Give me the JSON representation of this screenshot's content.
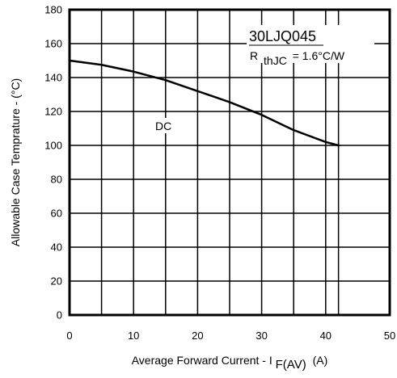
{
  "chart_data": {
    "type": "line",
    "xlabel": {
      "main": "Average Forward Current  - I",
      "subscript": "F(AV)",
      "unit": "(A)"
    },
    "ylabel": "Allowable Case Temprature - (°C)",
    "xlim": [
      0,
      50
    ],
    "ylim": [
      0,
      180
    ],
    "x_ticks": [
      "0",
      "10",
      "20",
      "30",
      "40",
      "50"
    ],
    "y_ticks": [
      "0",
      "20",
      "40",
      "60",
      "80",
      "100",
      "120",
      "140",
      "160",
      "180"
    ],
    "grid": true,
    "x_gridlines": [
      5,
      10,
      15,
      20,
      25,
      30,
      35,
      40,
      42
    ],
    "series": [
      {
        "label": "DC",
        "x": [
          0,
          5,
          10,
          15,
          20,
          25,
          30,
          35,
          40,
          42
        ],
        "values": [
          150,
          147.5,
          143.5,
          138.5,
          132,
          125.5,
          118,
          109,
          102,
          100
        ]
      }
    ],
    "end_marker": {
      "x": 42,
      "y": 100
    },
    "annotations": {
      "part_number": "30LJQ045",
      "rth_symbol": "R",
      "rth_subscript": "thJC",
      "rth_value": "= 1.6°C/W"
    },
    "colors": {
      "line": "#000000",
      "grid": "#000000",
      "background": "#ffffff"
    }
  }
}
